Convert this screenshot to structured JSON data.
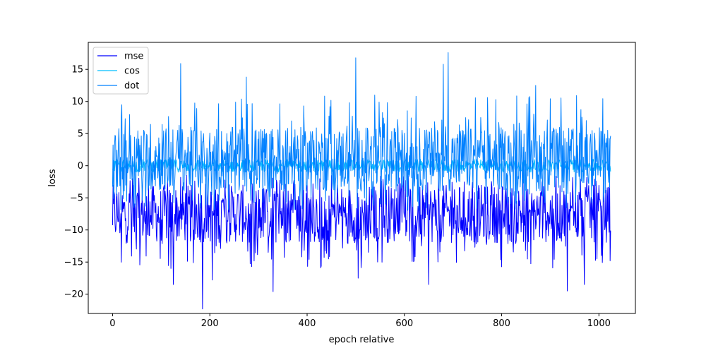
{
  "chart_data": {
    "type": "line",
    "title": "",
    "xlabel": "epoch relative",
    "ylabel": "loss",
    "xlim": [
      -50,
      1075
    ],
    "ylim": [
      -23.0,
      19.2
    ],
    "xticks": [
      0,
      200,
      400,
      600,
      800,
      1000
    ],
    "yticks": [
      -20,
      -15,
      -10,
      -5,
      0,
      5,
      10,
      15
    ],
    "x_range": [
      0,
      1024
    ],
    "grid": false,
    "legend_position": "top-left",
    "series": [
      {
        "name": "mse",
        "color": "#0000ff",
        "typical_range": [
          -12,
          -3
        ],
        "extremes": [
          {
            "x": 120,
            "y": -16.0
          },
          {
            "x": 125,
            "y": -18.5
          },
          {
            "x": 185,
            "y": -22.3
          },
          {
            "x": 205,
            "y": -17.8
          },
          {
            "x": 330,
            "y": -19.6
          },
          {
            "x": 505,
            "y": -17.5
          },
          {
            "x": 650,
            "y": -18.5
          },
          {
            "x": 935,
            "y": -19.5
          },
          {
            "x": 970,
            "y": -18.5
          }
        ]
      },
      {
        "name": "cos",
        "color": "#00bfff",
        "typical_range": [
          -1,
          1
        ],
        "extremes": []
      },
      {
        "name": "dot",
        "color": "#0080ff",
        "typical_range": [
          -4,
          6
        ],
        "extremes": [
          {
            "x": 140,
            "y": 15.9
          },
          {
            "x": 275,
            "y": 13.8
          },
          {
            "x": 500,
            "y": 16.8
          },
          {
            "x": 680,
            "y": 15.8
          },
          {
            "x": 690,
            "y": 17.6
          },
          {
            "x": 870,
            "y": 12.5
          }
        ]
      }
    ]
  }
}
